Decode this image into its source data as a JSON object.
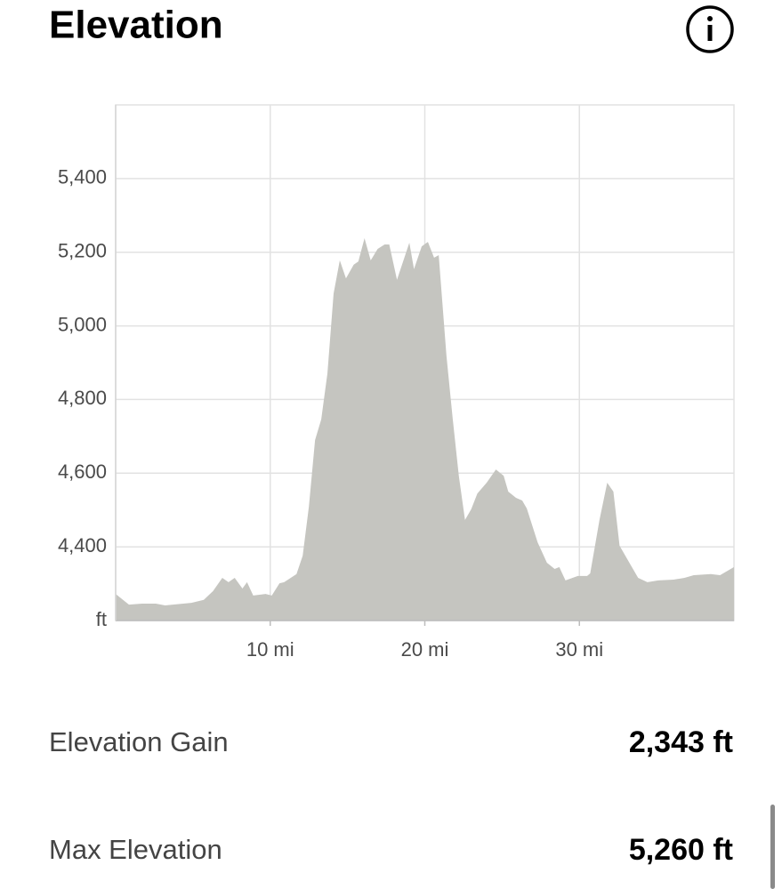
{
  "header": {
    "title": "Elevation"
  },
  "chart_data": {
    "type": "area",
    "color": "#c5c5c0",
    "x": [
      0,
      0.86,
      1.7,
      2.6,
      3.2,
      3.7,
      4.9,
      5.7,
      6.3,
      6.9,
      7.3,
      7.7,
      8.2,
      8.5,
      8.9,
      9.7,
      10.1,
      10.6,
      10.9,
      11.7,
      12.1,
      12.5,
      12.9,
      13.3,
      13.7,
      14.1,
      14.5,
      14.9,
      15.4,
      15.7,
      16.1,
      16.5,
      16.95,
      17.4,
      17.7,
      18.2,
      19.0,
      19.3,
      19.8,
      20.2,
      20.6,
      20.9,
      21.4,
      21.8,
      22.2,
      22.6,
      23.0,
      23.4,
      24.0,
      24.6,
      25.1,
      25.4,
      25.9,
      26.3,
      26.6,
      27.3,
      27.9,
      28.4,
      28.7,
      29.1,
      29.9,
      30.5,
      30.7,
      31.3,
      31.8,
      32.2,
      32.6,
      33.3,
      33.8,
      34.4,
      35.1,
      36.1,
      36.8,
      37.4,
      38.5,
      39.1,
      40
    ],
    "values": [
      4272,
      4243,
      4246,
      4246,
      4241,
      4243,
      4248,
      4256,
      4280,
      4316,
      4304,
      4316,
      4287,
      4304,
      4268,
      4272,
      4268,
      4301,
      4304,
      4326,
      4376,
      4509,
      4690,
      4746,
      4871,
      5088,
      5178,
      5129,
      5166,
      5175,
      5238,
      5178,
      5209,
      5221,
      5221,
      5125,
      5226,
      5154,
      5216,
      5228,
      5185,
      5192,
      4919,
      4750,
      4593,
      4473,
      4502,
      4545,
      4574,
      4610,
      4593,
      4550,
      4533,
      4526,
      4504,
      4412,
      4357,
      4340,
      4345,
      4309,
      4321,
      4321,
      4328,
      4473,
      4574,
      4550,
      4403,
      4352,
      4316,
      4304,
      4309,
      4311,
      4316,
      4323,
      4326,
      4323,
      4345
    ],
    "xlim": [
      0,
      40
    ],
    "xticks": [
      {
        "value": 10,
        "label": "10 mi"
      },
      {
        "value": 20,
        "label": "20 mi"
      },
      {
        "value": 30,
        "label": "30 mi"
      }
    ],
    "ylim": [
      4200,
      5600
    ],
    "yticks": [
      {
        "value": 4200,
        "label": "ft"
      },
      {
        "value": 4400,
        "label": "4,400"
      },
      {
        "value": 4600,
        "label": "4,600"
      },
      {
        "value": 4800,
        "label": "4,800"
      },
      {
        "value": 5000,
        "label": "5,000"
      },
      {
        "value": 5200,
        "label": "5,200"
      },
      {
        "value": 5400,
        "label": "5,400"
      }
    ],
    "grid": true
  },
  "stats": [
    {
      "label": "Elevation Gain",
      "value": "2,343 ft"
    },
    {
      "label": "Max Elevation",
      "value": "5,260 ft"
    }
  ]
}
